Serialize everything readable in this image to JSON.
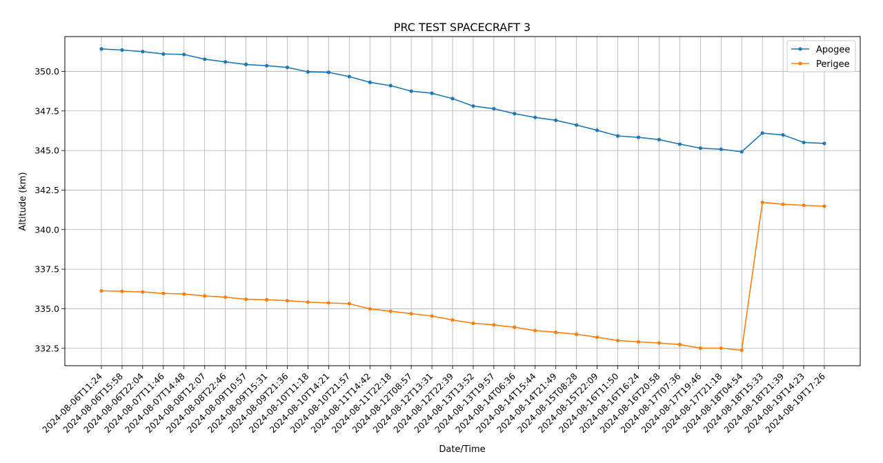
{
  "chart_data": {
    "type": "line",
    "title": "PRC TEST SPACECRAFT 3",
    "xlabel": "Date/Time",
    "ylabel": "Altitude (km)",
    "grid": true,
    "legend_position": "top-right",
    "ylim": [
      331.4,
      352.2
    ],
    "yticks": [
      "332.5",
      "335.0",
      "337.5",
      "340.0",
      "342.5",
      "345.0",
      "347.5",
      "350.0"
    ],
    "x": [
      "2024-08-06T11:24",
      "2024-08-06T15:58",
      "2024-08-06T22:04",
      "2024-08-07T11:46",
      "2024-08-07T14:48",
      "2024-08-08T12:07",
      "2024-08-08T22:46",
      "2024-08-09T10:57",
      "2024-08-09T15:31",
      "2024-08-09T21:36",
      "2024-08-10T11:18",
      "2024-08-10T14:21",
      "2024-08-10T21:57",
      "2024-08-11T14:42",
      "2024-08-11T22:18",
      "2024-08-12T08:57",
      "2024-08-12T13:31",
      "2024-08-12T22:39",
      "2024-08-13T13:52",
      "2024-08-13T19:57",
      "2024-08-14T06:36",
      "2024-08-14T15:44",
      "2024-08-14T21:49",
      "2024-08-15T08:28",
      "2024-08-15T22:09",
      "2024-08-16T11:50",
      "2024-08-16T16:24",
      "2024-08-16T20:58",
      "2024-08-17T07:36",
      "2024-08-17T19:46",
      "2024-08-17T21:18",
      "2024-08-18T04:54",
      "2024-08-18T15:33",
      "2024-08-18T21:39",
      "2024-08-19T14:23",
      "2024-08-19T17:26"
    ],
    "series": [
      {
        "name": "Apogee",
        "color": "#1f77b4",
        "values": [
          351.42,
          351.35,
          351.25,
          351.1,
          351.07,
          350.77,
          350.6,
          350.44,
          350.36,
          350.25,
          349.97,
          349.94,
          349.67,
          349.31,
          349.1,
          348.75,
          348.62,
          348.28,
          347.81,
          347.64,
          347.33,
          347.09,
          346.91,
          346.61,
          346.28,
          345.92,
          345.83,
          345.69,
          345.4,
          345.15,
          345.08,
          344.92,
          346.1,
          345.98,
          345.51,
          345.45
        ]
      },
      {
        "name": "Perigee",
        "color": "#ff7f0e",
        "values": [
          336.13,
          336.1,
          336.06,
          335.97,
          335.93,
          335.81,
          335.73,
          335.6,
          335.57,
          335.51,
          335.42,
          335.37,
          335.32,
          334.99,
          334.84,
          334.69,
          334.54,
          334.29,
          334.08,
          333.98,
          333.83,
          333.62,
          333.51,
          333.39,
          333.2,
          332.99,
          332.91,
          332.84,
          332.74,
          332.51,
          332.51,
          332.38,
          341.72,
          341.6,
          341.54,
          341.48
        ]
      }
    ]
  }
}
